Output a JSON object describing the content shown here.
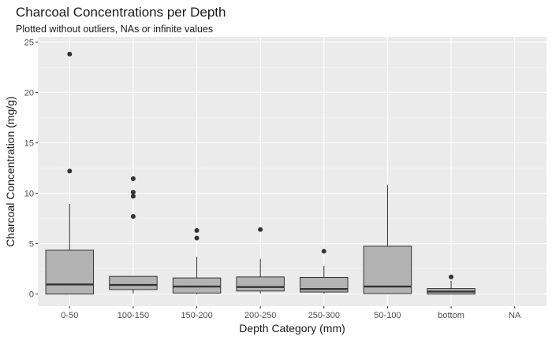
{
  "chart_data": {
    "type": "boxplot",
    "title": "Charcoal Concentrations per Depth",
    "subtitle": "Plotted without outliers, NAs or infinite values",
    "xlabel": "Depth Category (mm)",
    "ylabel": "Charcoal Concentration (mg/g)",
    "ylim": [
      -1.2,
      25.5
    ],
    "yticks": [
      0,
      5,
      10,
      15,
      20,
      25
    ],
    "ytick_labels": [
      "0",
      "5",
      "10",
      "15",
      "20",
      "25"
    ],
    "grid": true,
    "colors": {
      "panel": "#ebebeb",
      "grid_major": "#ffffff",
      "grid_minor": "#f5f5f5",
      "box_fill": "#b3b3b3",
      "line": "#333333",
      "point": "#333333"
    },
    "categories": [
      "0-50",
      "100-150",
      "150-200",
      "200-250",
      "250-300",
      "50-100",
      "bottom",
      "NA"
    ],
    "boxes": [
      {
        "category": "0-50",
        "lower_whisker": 0.0,
        "q1": 0.0,
        "median": 0.95,
        "q3": 4.35,
        "upper_whisker": 8.95,
        "outliers": [
          12.2,
          23.8
        ]
      },
      {
        "category": "100-150",
        "lower_whisker": 0.05,
        "q1": 0.45,
        "median": 0.9,
        "q3": 1.75,
        "upper_whisker": 1.75,
        "outliers": [
          7.7,
          9.7,
          10.1,
          11.45
        ]
      },
      {
        "category": "150-200",
        "lower_whisker": 0.0,
        "q1": 0.1,
        "median": 0.75,
        "q3": 1.6,
        "upper_whisker": 3.7,
        "outliers": [
          5.55,
          6.3
        ]
      },
      {
        "category": "200-250",
        "lower_whisker": 0.05,
        "q1": 0.3,
        "median": 0.7,
        "q3": 1.7,
        "upper_whisker": 3.5,
        "outliers": [
          6.4
        ]
      },
      {
        "category": "250-300",
        "lower_whisker": 0.05,
        "q1": 0.2,
        "median": 0.5,
        "q3": 1.65,
        "upper_whisker": 2.8,
        "outliers": [
          4.25
        ]
      },
      {
        "category": "50-100",
        "lower_whisker": 0.0,
        "q1": 0.05,
        "median": 0.75,
        "q3": 4.75,
        "upper_whisker": 10.8,
        "outliers": []
      },
      {
        "category": "bottom",
        "lower_whisker": 0.0,
        "q1": 0.0,
        "median": 0.25,
        "q3": 0.55,
        "upper_whisker": 1.3,
        "outliers": [
          1.7
        ]
      },
      {
        "category": "NA",
        "lower_whisker": null,
        "q1": null,
        "median": null,
        "q3": null,
        "upper_whisker": null,
        "outliers": []
      }
    ]
  }
}
